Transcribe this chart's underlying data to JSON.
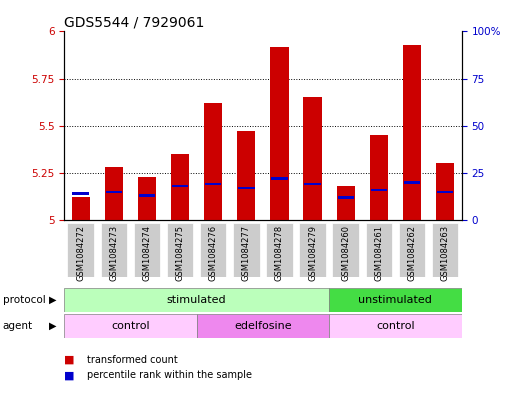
{
  "title": "GDS5544 / 7929061",
  "samples": [
    "GSM1084272",
    "GSM1084273",
    "GSM1084274",
    "GSM1084275",
    "GSM1084276",
    "GSM1084277",
    "GSM1084278",
    "GSM1084279",
    "GSM1084260",
    "GSM1084261",
    "GSM1084262",
    "GSM1084263"
  ],
  "transformed_counts": [
    5.12,
    5.28,
    5.23,
    5.35,
    5.62,
    5.47,
    5.92,
    5.65,
    5.18,
    5.45,
    5.93,
    5.3
  ],
  "percentile_ranks": [
    14,
    15,
    13,
    18,
    19,
    17,
    22,
    19,
    12,
    16,
    20,
    15
  ],
  "ylim_left": [
    5.0,
    6.0
  ],
  "ylim_right": [
    0,
    100
  ],
  "yticks_left": [
    5.0,
    5.25,
    5.5,
    5.75,
    6.0
  ],
  "yticks_right": [
    0,
    25,
    50,
    75,
    100
  ],
  "bar_color": "#cc0000",
  "percentile_color": "#0000cc",
  "bar_width": 0.55,
  "protocol_groups": [
    {
      "label": "stimulated",
      "start": 0,
      "end": 8,
      "color": "#bbffbb"
    },
    {
      "label": "unstimulated",
      "start": 8,
      "end": 12,
      "color": "#44dd44"
    }
  ],
  "agent_groups": [
    {
      "label": "control",
      "start": 0,
      "end": 4,
      "color": "#ffccff"
    },
    {
      "label": "edelfosine",
      "start": 4,
      "end": 8,
      "color": "#ee88ee"
    },
    {
      "label": "control",
      "start": 8,
      "end": 12,
      "color": "#ffccff"
    }
  ],
  "legend_items": [
    {
      "label": "transformed count",
      "color": "#cc0000"
    },
    {
      "label": "percentile rank within the sample",
      "color": "#0000cc"
    }
  ],
  "background_color": "#ffffff",
  "left_tick_color": "#cc0000",
  "right_tick_color": "#0000cc",
  "xtick_bg_color": "#cccccc",
  "title_fontsize": 10,
  "tick_fontsize": 7.5,
  "label_fontsize": 8
}
